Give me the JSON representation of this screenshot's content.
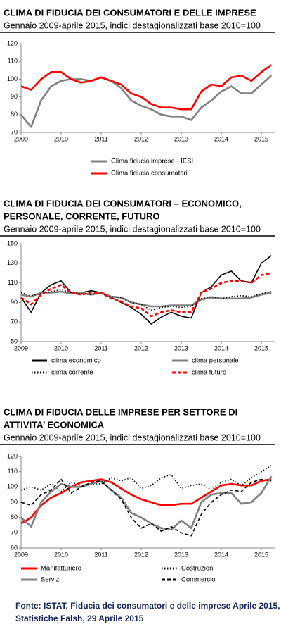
{
  "chart_data": [
    {
      "type": "line",
      "title": [
        "CLIMA DI FIDUCIA DEI CONSUMATORI E DELLE IMPRESE"
      ],
      "subtitle": "Gennaio 2009-aprile 2015, indici destagionalizzati base 2010=100",
      "x": [
        2009,
        2009.25,
        2009.5,
        2009.75,
        2010,
        2010.25,
        2010.5,
        2010.75,
        2011,
        2011.25,
        2011.5,
        2011.75,
        2012,
        2012.25,
        2012.5,
        2012.75,
        2013,
        2013.25,
        2013.5,
        2013.75,
        2014,
        2014.25,
        2014.5,
        2014.75,
        2015,
        2015.25
      ],
      "xlim": [
        2009,
        2015.35
      ],
      "xticks": [
        2009,
        2010,
        2011,
        2012,
        2013,
        2014,
        2015
      ],
      "ylim": [
        70,
        120
      ],
      "yticks": [
        70,
        80,
        90,
        100,
        110,
        120
      ],
      "legend": "bottom",
      "series": [
        {
          "name": "Clima fiducia imprese - IESI",
          "color": "#808080",
          "style": "solid",
          "values": [
            80,
            73,
            88,
            96,
            99,
            100,
            100,
            99,
            101,
            99,
            95,
            88,
            85,
            83,
            80,
            79,
            79,
            77,
            84,
            88,
            93,
            96,
            92,
            92,
            97,
            102
          ]
        },
        {
          "name": "Clima fiducia consumatori",
          "color": "#ff0000",
          "style": "solid",
          "values": [
            96,
            94,
            100,
            104,
            104,
            100,
            98,
            99,
            101,
            99,
            97,
            92,
            90,
            86,
            84,
            84,
            83,
            83,
            93,
            97,
            96,
            101,
            102,
            99,
            104,
            108
          ]
        }
      ]
    },
    {
      "type": "line",
      "title": [
        "CLIMA DI FIDUCIA DEI CONSUMATORI – ECONOMICO,",
        "PERSONALE, CORRENTE, FUTURO"
      ],
      "subtitle": "Gennaio 2009-aprile 2015, indici destagionalizzati base 2010=100",
      "x": [
        2009,
        2009.25,
        2009.5,
        2009.75,
        2010,
        2010.25,
        2010.5,
        2010.75,
        2011,
        2011.25,
        2011.5,
        2011.75,
        2012,
        2012.25,
        2012.5,
        2012.75,
        2013,
        2013.25,
        2013.5,
        2013.75,
        2014,
        2014.25,
        2014.5,
        2014.75,
        2015,
        2015.25
      ],
      "xlim": [
        2009,
        2015.35
      ],
      "xticks": [
        2009,
        2010,
        2011,
        2012,
        2013,
        2014,
        2015
      ],
      "ylim": [
        50,
        150
      ],
      "yticks": [
        50,
        70,
        90,
        110,
        130,
        150
      ],
      "legend": "bottom",
      "series": [
        {
          "name": "clima economico",
          "color": "#000000",
          "style": "solid",
          "values": [
            95,
            80,
            100,
            108,
            112,
            100,
            100,
            102,
            100,
            95,
            90,
            85,
            78,
            68,
            75,
            80,
            76,
            74,
            100,
            106,
            118,
            122,
            112,
            110,
            130,
            138
          ]
        },
        {
          "name": "clima personale",
          "color": "#808080",
          "style": "solid",
          "values": [
            98,
            96,
            100,
            100,
            101,
            99,
            100,
            98,
            100,
            96,
            95,
            90,
            88,
            86,
            86,
            87,
            87,
            87,
            93,
            95,
            94,
            94,
            94,
            95,
            98,
            100
          ]
        },
        {
          "name": "clima corrente",
          "color": "#000000",
          "style": "dotted",
          "values": [
            100,
            97,
            99,
            101,
            103,
            100,
            99,
            98,
            99,
            96,
            95,
            90,
            88,
            82,
            85,
            86,
            85,
            86,
            94,
            96,
            94,
            96,
            97,
            96,
            99,
            101
          ]
        },
        {
          "name": "clima futuro",
          "color": "#ff0000",
          "style": "dashed",
          "values": [
            95,
            88,
            98,
            104,
            108,
            100,
            98,
            100,
            100,
            94,
            91,
            86,
            84,
            76,
            80,
            82,
            80,
            80,
            100,
            104,
            110,
            112,
            112,
            110,
            118,
            120
          ]
        }
      ]
    },
    {
      "type": "line",
      "title": [
        "CLIMA DI FIDUCIA DELLE IMPRESE PER SETTORE DI",
        "ATTIVITA’ ECONOMICA"
      ],
      "subtitle": "Gennaio 2009-aprile 2015, indici destagionalizzati base 2010=100",
      "x": [
        2009,
        2009.25,
        2009.5,
        2009.75,
        2010,
        2010.25,
        2010.5,
        2010.75,
        2011,
        2011.25,
        2011.5,
        2011.75,
        2012,
        2012.25,
        2012.5,
        2012.75,
        2013,
        2013.25,
        2013.5,
        2013.75,
        2014,
        2014.25,
        2014.5,
        2014.75,
        2015,
        2015.25
      ],
      "xlim": [
        2009,
        2015.35
      ],
      "xticks": [
        2009,
        2010,
        2011,
        2012,
        2013,
        2014,
        2015
      ],
      "ylim": [
        60,
        120
      ],
      "yticks": [
        60,
        70,
        80,
        90,
        100,
        110,
        120
      ],
      "legend": "bottom",
      "series": [
        {
          "name": "Manifatturiero",
          "color": "#ff0000",
          "style": "solid",
          "values": [
            76,
            80,
            88,
            93,
            96,
            100,
            103,
            104,
            105,
            103,
            99,
            95,
            92,
            90,
            88,
            88,
            89,
            89,
            93,
            97,
            101,
            102,
            101,
            101,
            104,
            105
          ]
        },
        {
          "name": "Costruzioni",
          "color": "#000000",
          "style": "dotted",
          "values": [
            98,
            100,
            98,
            102,
            97,
            103,
            101,
            102,
            102,
            106,
            104,
            106,
            99,
            101,
            106,
            108,
            99,
            101,
            102,
            98,
            103,
            105,
            101,
            106,
            110,
            114
          ]
        },
        {
          "name": "Servizi",
          "color": "#808080",
          "style": "solid",
          "values": [
            80,
            74,
            90,
            97,
            102,
            100,
            100,
            102,
            104,
            98,
            93,
            83,
            80,
            76,
            73,
            72,
            78,
            73,
            90,
            95,
            96,
            96,
            89,
            90,
            96,
            107
          ]
        },
        {
          "name": "Commercio",
          "color": "#000000",
          "style": "dashed",
          "values": [
            90,
            88,
            95,
            98,
            105,
            96,
            100,
            103,
            104,
            98,
            92,
            80,
            73,
            76,
            71,
            74,
            70,
            68,
            82,
            90,
            95,
            98,
            97,
            103,
            105,
            104
          ]
        }
      ]
    }
  ],
  "source": [
    "Fonte: ISTAT, Fiducia dei consumatori e delle imprese Aprile 2015,",
    "Statistiche Falsh, 29 Aprile 2015"
  ]
}
